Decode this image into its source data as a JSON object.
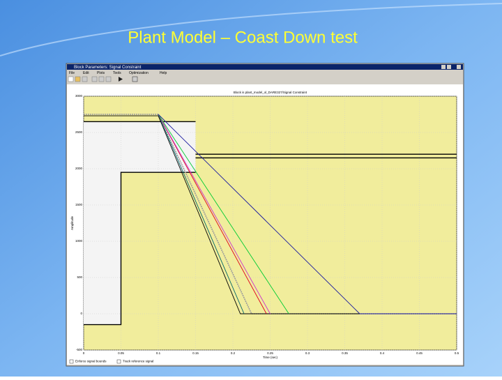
{
  "slide_title": "Plant Model – Coast Down test",
  "window": {
    "title": "Block Parameters: Signal Constraint",
    "menu": [
      "File",
      "Edit",
      "Plots",
      "Tools",
      "Optimization",
      "Help"
    ],
    "checkboxes": [
      "Enforce signal bounds",
      "Track reference signal"
    ]
  },
  "chart_data": {
    "type": "line",
    "title": "Block is plant_model_ol_DARE327/Signal Constraint",
    "x_label": "Time (sec)",
    "y_label": "Amplitude",
    "xlim": [
      0,
      0.5
    ],
    "ylim": [
      -500,
      3000
    ],
    "xticks": [
      0,
      0.05,
      0.1,
      0.15,
      0.2,
      0.25,
      0.3,
      0.35,
      0.4,
      0.45,
      0.5
    ],
    "yticks": [
      -500,
      0,
      500,
      1000,
      1500,
      2000,
      2500,
      3000
    ],
    "grid": true,
    "background": "#f1ed9c",
    "feasible_color": "#f4f4f4",
    "bounds": [
      {
        "color": "#000000",
        "x": [
          0,
          0.15
        ],
        "values": [
          2650,
          2650
        ]
      },
      {
        "color": "#000000",
        "x": [
          0,
          0.05,
          0.05,
          0.15
        ],
        "values": [
          -150,
          -150,
          1950,
          1950
        ]
      },
      {
        "color": "#000000",
        "x": [
          0.15,
          0.5
        ],
        "values": [
          2200,
          2200
        ]
      },
      {
        "color": "#000000",
        "x": [
          0.15,
          0.5
        ],
        "values": [
          2150,
          2150
        ]
      }
    ],
    "series": [
      {
        "color": "#9a9a9a",
        "dashed": true,
        "x": [
          0,
          0.1,
          0.225,
          0.5
        ],
        "values": [
          2750,
          2750,
          0,
          0
        ]
      },
      {
        "color": "#000000",
        "x": [
          0,
          0.1,
          0.21,
          0.5
        ],
        "values": [
          2730,
          2730,
          0,
          0
        ]
      },
      {
        "color": "#006666",
        "x": [
          0.1,
          0.215
        ],
        "values": [
          2750,
          0
        ]
      },
      {
        "color": "#e0001a",
        "x": [
          0.1,
          0.245
        ],
        "values": [
          2750,
          0
        ]
      },
      {
        "color": "#cc33cc",
        "x": [
          0.1,
          0.25
        ],
        "values": [
          2750,
          0
        ]
      },
      {
        "color": "#00cc33",
        "x": [
          0.1,
          0.275
        ],
        "values": [
          2750,
          0
        ]
      },
      {
        "color": "#1a1aa0",
        "x": [
          0.1,
          0.37,
          0.5
        ],
        "values": [
          2750,
          0,
          0
        ]
      }
    ]
  }
}
